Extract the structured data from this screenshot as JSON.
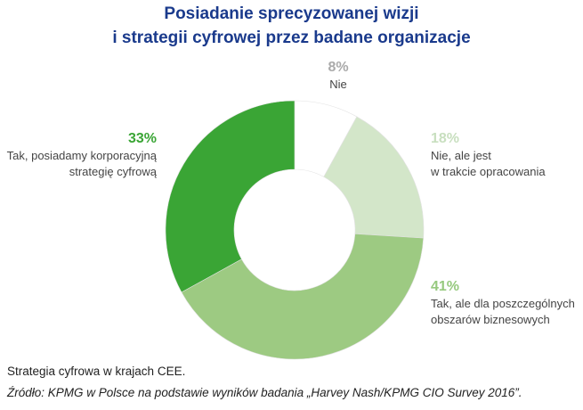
{
  "chart_data": {
    "type": "pie",
    "variant": "donut",
    "title_lines": [
      "Posiadanie sprecyzowanej wizji",
      "i strategii cyfrowej przez badane organizacje"
    ],
    "slices": [
      {
        "pct_label": "8%",
        "value": 8,
        "label_lines": [
          "Nie"
        ],
        "color": "#ffffff"
      },
      {
        "pct_label": "18%",
        "value": 18,
        "label_lines": [
          "Nie, ale jest",
          "w trakcie opracowania"
        ],
        "color": "#d3e6c9"
      },
      {
        "pct_label": "41%",
        "value": 41,
        "label_lines": [
          "Tak, ale dla poszczególnych",
          "obszarów biznesowych"
        ],
        "color": "#9dca82"
      },
      {
        "pct_label": "33%",
        "value": 33,
        "label_lines": [
          "Tak, posiadamy korporacyjną",
          "strategię cyfrową"
        ],
        "color": "#3aa535"
      }
    ],
    "note": "Strategia cyfrowa w krajach CEE.",
    "source": "Źródło: KPMG w Polsce na podstawie wyników badania „Harvey Nash/KPMG CIO Survey 2016”."
  }
}
